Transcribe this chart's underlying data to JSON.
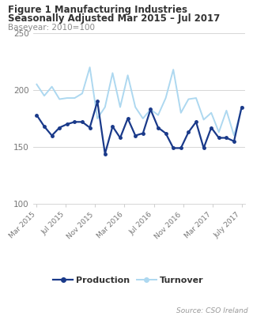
{
  "title_line1": "Figure 1 Manufacturing Industries",
  "title_line2": "Seasonally Adjusted Mar 2015 – Jul 2017",
  "subtitle": "Baseyear: 2010=100",
  "source": "Source: CSO Ireland",
  "x_labels": [
    "Mar 2015",
    "Jul 2015",
    "Nov 2015",
    "Mar 2016",
    "Jul 2016",
    "Nov 2016",
    "Mar 2017",
    "July 2017"
  ],
  "production": [
    178,
    168,
    160,
    167,
    170,
    172,
    172,
    167,
    190,
    144,
    168,
    158,
    175,
    160,
    162,
    183,
    167,
    162,
    149,
    149,
    163,
    172,
    149,
    167,
    158,
    158,
    155,
    185
  ],
  "turnover": [
    205,
    195,
    203,
    192,
    193,
    193,
    197,
    220,
    175,
    185,
    215,
    185,
    213,
    185,
    175,
    183,
    178,
    193,
    218,
    180,
    192,
    193,
    174,
    180,
    163,
    182,
    160,
    184
  ],
  "production_color": "#1a3a8a",
  "turnover_color": "#add8f0",
  "ylim": [
    100,
    250
  ],
  "yticks": [
    100,
    150,
    200,
    250
  ],
  "background_color": "#ffffff",
  "grid_color": "#d0d0d0",
  "title_color": "#333333",
  "subtitle_color": "#888888",
  "source_color": "#999999",
  "legend_production": "Production",
  "legend_turnover": "Turnover"
}
